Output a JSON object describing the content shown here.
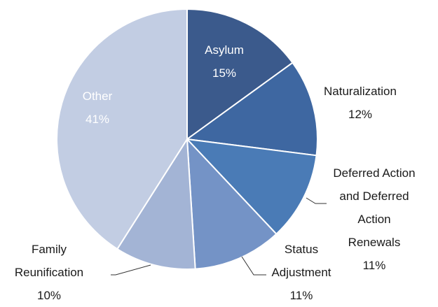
{
  "chart_data": {
    "type": "pie",
    "categories": [
      "Asylum",
      "Naturalization",
      "Deferred Action\nand Deferred\nAction\nRenewals",
      "Status\nAdjustment",
      "Family\nReunification",
      "Other"
    ],
    "values": [
      15,
      12,
      11,
      11,
      10,
      41
    ],
    "value_labels": [
      "15%",
      "12%",
      "11%",
      "11%",
      "10%",
      "41%"
    ],
    "colors": [
      "#3b5a8c",
      "#3e67a1",
      "#4a7bb6",
      "#7493c6",
      "#a3b4d5",
      "#c2cde3"
    ]
  }
}
